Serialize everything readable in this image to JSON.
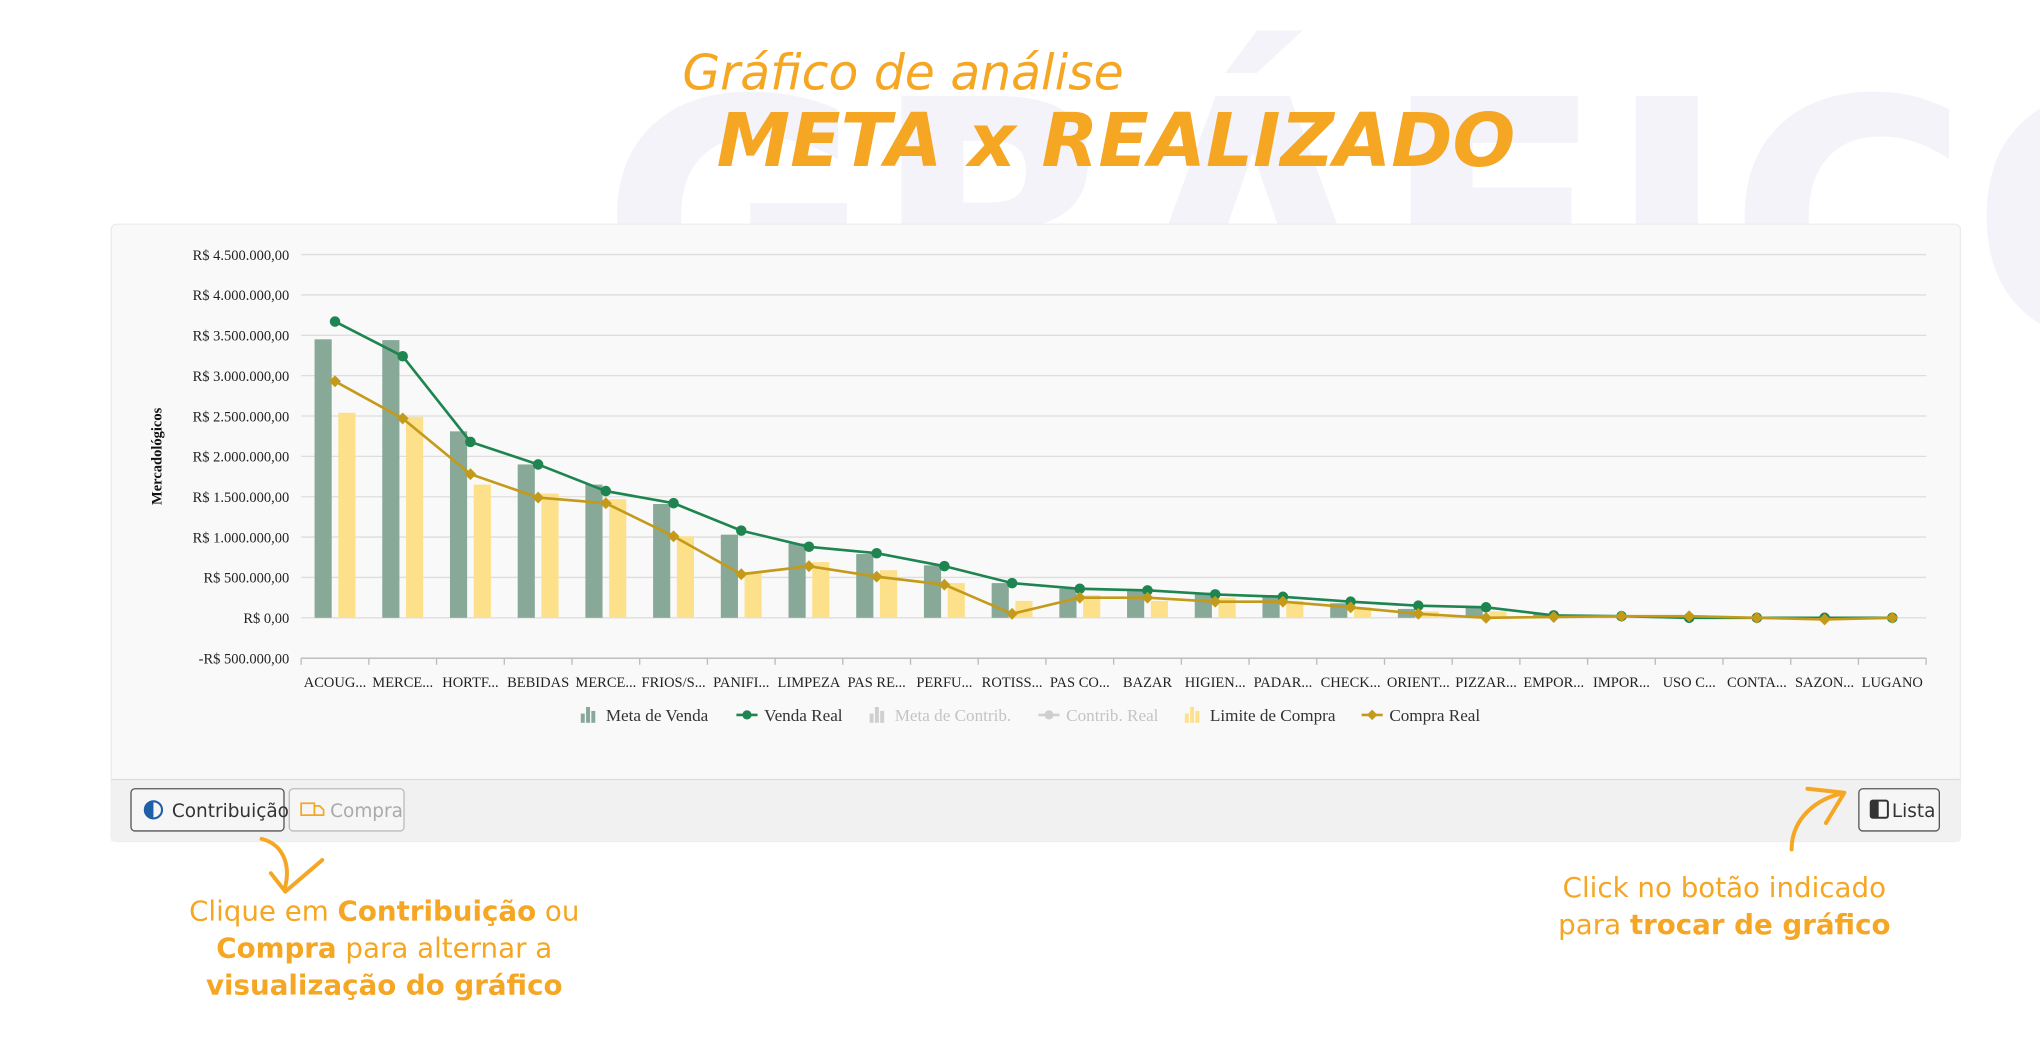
{
  "header": {
    "watermark": "GRÁFICO",
    "subtitle": "Gráfico de análise",
    "title": "META x REALIZADO"
  },
  "chart_data": {
    "type": "bar",
    "y_label": "Mercadológicos",
    "categories": [
      "ACOUG...",
      "MERCE...",
      "HORTF...",
      "BEBIDAS",
      "MERCE...",
      "FRIOS/S...",
      "PANIFI...",
      "LIMPEZA",
      "PAS RE...",
      "PERFU...",
      "ROTISS...",
      "PAS CO...",
      "BAZAR",
      "HIGIEN...",
      "PADAR...",
      "CHECK...",
      "ORIENT...",
      "PIZZAR...",
      "EMPOR...",
      "IMPOR...",
      "USO C...",
      "CONTA...",
      "SAZON...",
      "LUGANO"
    ],
    "ylim": [
      -500000,
      4500000
    ],
    "yticks": [
      {
        "value": -500000,
        "label": "-R$ 500.000,00"
      },
      {
        "value": 0,
        "label": "R$ 0,00"
      },
      {
        "value": 500000,
        "label": "R$ 500.000,00"
      },
      {
        "value": 1000000,
        "label": "R$ 1.000.000,00"
      },
      {
        "value": 1500000,
        "label": "R$ 1.500.000,00"
      },
      {
        "value": 2000000,
        "label": "R$ 2.000.000,00"
      },
      {
        "value": 2500000,
        "label": "R$ 2.500.000,00"
      },
      {
        "value": 3000000,
        "label": "R$ 3.000.000,00"
      },
      {
        "value": 3500000,
        "label": "R$ 3.500.000,00"
      },
      {
        "value": 4000000,
        "label": "R$ 4.000.000,00"
      },
      {
        "value": 4500000,
        "label": "R$ 4.500.000,00"
      }
    ],
    "grid": true,
    "series": [
      {
        "name": "Meta de Venda",
        "kind": "bar",
        "color": "#88a898",
        "values": [
          3450000,
          3440000,
          2310000,
          1900000,
          1650000,
          1410000,
          1030000,
          920000,
          790000,
          650000,
          430000,
          360000,
          330000,
          310000,
          280000,
          180000,
          110000,
          130000,
          50000,
          30000,
          20000,
          10000,
          5000,
          3000
        ]
      },
      {
        "name": "Venda Real",
        "kind": "line",
        "color": "#1e8450",
        "marker": "circle",
        "values": [
          3670000,
          3240000,
          2180000,
          1900000,
          1570000,
          1420000,
          1080000,
          880000,
          800000,
          640000,
          430000,
          360000,
          340000,
          290000,
          260000,
          200000,
          150000,
          130000,
          30000,
          20000,
          0,
          0,
          0,
          0
        ]
      },
      {
        "name": "Meta de Contrib.",
        "kind": "bar",
        "color": "#c8c8c8",
        "hidden": true,
        "values": [
          null,
          null,
          null,
          null,
          null,
          null,
          null,
          null,
          null,
          null,
          null,
          null,
          null,
          null,
          null,
          null,
          null,
          null,
          null,
          null,
          null,
          null,
          null,
          null
        ]
      },
      {
        "name": "Contrib. Real",
        "kind": "line",
        "color": "#c8c8c8",
        "hidden": true,
        "values": [
          null,
          null,
          null,
          null,
          null,
          null,
          null,
          null,
          null,
          null,
          null,
          null,
          null,
          null,
          null,
          null,
          null,
          null,
          null,
          null,
          null,
          null,
          null,
          null
        ]
      },
      {
        "name": "Limite de Compra",
        "kind": "bar",
        "color": "#fde08a",
        "values": [
          2540000,
          2490000,
          1650000,
          1540000,
          1470000,
          1010000,
          570000,
          690000,
          590000,
          430000,
          210000,
          280000,
          210000,
          250000,
          210000,
          130000,
          80000,
          80000,
          30000,
          30000,
          30000,
          10000,
          5000,
          0
        ]
      },
      {
        "name": "Compra Real",
        "kind": "line",
        "color": "#c49a1a",
        "marker": "diamond",
        "values": [
          2930000,
          2470000,
          1780000,
          1490000,
          1420000,
          1010000,
          540000,
          640000,
          510000,
          410000,
          50000,
          250000,
          250000,
          200000,
          200000,
          130000,
          50000,
          0,
          10000,
          20000,
          20000,
          0,
          -20000,
          0
        ]
      }
    ]
  },
  "buttons": {
    "contrib": "Contribuição",
    "compra": "Compra",
    "lista": "Lista"
  },
  "annotations": {
    "left": [
      [
        {
          "text": "Clique em ",
          "bold": false
        },
        {
          "text": "Contribuição",
          "bold": true
        },
        {
          "text": " ou",
          "bold": false
        }
      ],
      [
        {
          "text": "Compra",
          "bold": true
        },
        {
          "text": " para alternar a",
          "bold": false
        }
      ],
      [
        {
          "text": "visualização do gráfico",
          "bold": true
        }
      ]
    ],
    "right": [
      [
        {
          "text": "Click no botão indicado",
          "bold": false
        }
      ],
      [
        {
          "text": "para ",
          "bold": false
        },
        {
          "text": "trocar de gráfico",
          "bold": true
        }
      ]
    ]
  }
}
